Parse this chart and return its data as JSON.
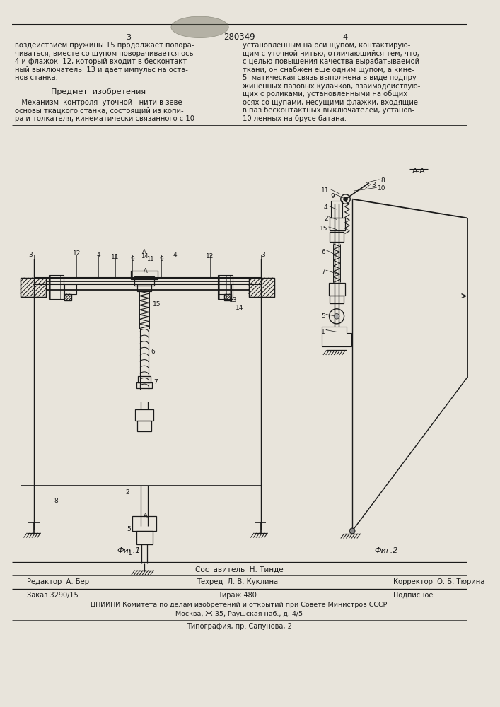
{
  "bg_color": "#e8e4db",
  "page_color": "#e8e4db",
  "line_color": "#1a1a1a",
  "text_color": "#1a1a1a",
  "page_number_left": "3",
  "page_number_right": "4",
  "patent_number": "280349",
  "footer_sostavitel": "Составитель  Н. Тинде",
  "footer_redaktor": "Редактор  А. Бер",
  "footer_tehred": "Техред  Л. В. Куклина",
  "footer_korrektor": "Корректор  О. Б. Тюрина",
  "footer_zakaz": "Заказ 3290/15",
  "footer_tirazh": "Тираж 480",
  "footer_podpisnoe": "Подписное",
  "footer_tsniipи": "ЦНИИПИ Комитета по делам изобретений и открытий при Совете Министров СССР",
  "footer_moscow": "Москва, Ж-35, Раушская наб., д. 4/5",
  "footer_tipografia": "Типография, пр. Сапунова, 2",
  "fig1_label": "Фиг.1",
  "fig2_label": "Фиг.2",
  "section_label": "A-A"
}
